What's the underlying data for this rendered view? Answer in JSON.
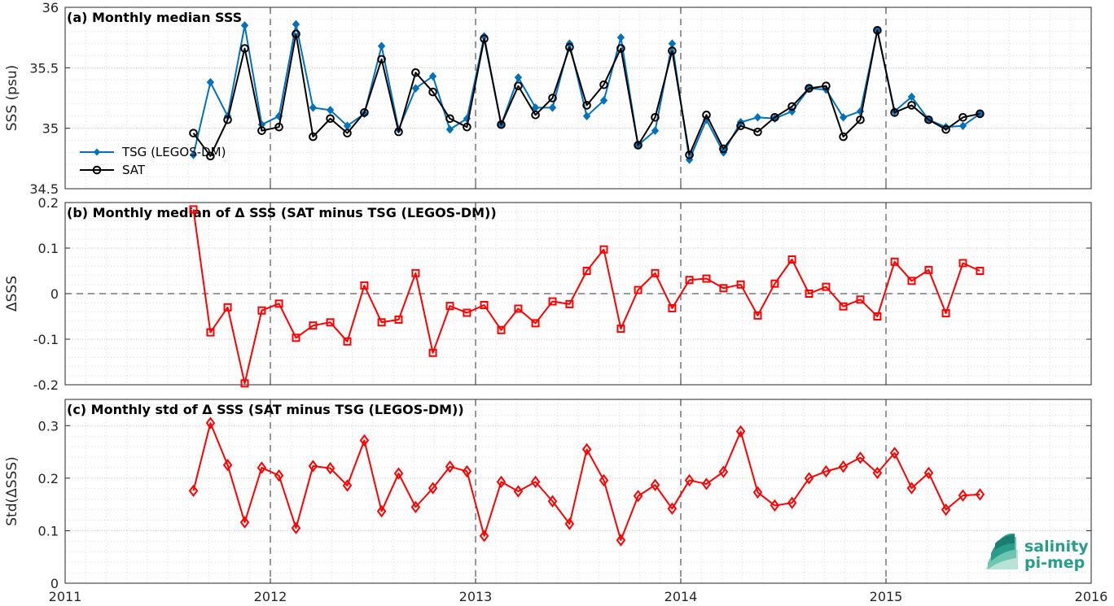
{
  "chart_data": [
    {
      "type": "line",
      "title": "(a) Monthly median SSS",
      "xlabel": "",
      "ylabel": "SSS (psu)",
      "xlim": [
        2011,
        2016
      ],
      "ylim": [
        34.5,
        36
      ],
      "yticks": [
        "34.5",
        "35",
        "35.5",
        "36"
      ],
      "grid": true,
      "legend_position": "left",
      "x": [
        2011.625,
        2011.708,
        2011.792,
        2011.875,
        2011.958,
        2012.042,
        2012.125,
        2012.208,
        2012.292,
        2012.375,
        2012.458,
        2012.542,
        2012.625,
        2012.708,
        2012.792,
        2012.875,
        2012.958,
        2013.042,
        2013.125,
        2013.208,
        2013.292,
        2013.375,
        2013.458,
        2013.542,
        2013.625,
        2013.708,
        2013.792,
        2013.875,
        2013.958,
        2014.042,
        2014.125,
        2014.208,
        2014.292,
        2014.375,
        2014.458,
        2014.542,
        2014.625,
        2014.708,
        2014.792,
        2014.875,
        2014.958,
        2015.042,
        2015.125,
        2015.208,
        2015.292,
        2015.375,
        2015.458
      ],
      "series": [
        {
          "name": "TSG (LEGOS-DM)",
          "color": "#0072BD",
          "marker": "diamond",
          "values": [
            34.78,
            35.38,
            35.1,
            35.85,
            35.03,
            35.1,
            35.86,
            35.17,
            35.15,
            35.02,
            35.12,
            35.68,
            34.99,
            35.33,
            35.43,
            34.99,
            35.08,
            35.76,
            35.03,
            35.42,
            35.17,
            35.17,
            35.7,
            35.1,
            35.23,
            35.75,
            34.86,
            34.98,
            35.7,
            34.74,
            35.07,
            34.8,
            35.05,
            35.09,
            35.08,
            35.14,
            35.33,
            35.32,
            35.09,
            35.14,
            35.81,
            35.14,
            35.26,
            35.07,
            35.01,
            35.02,
            35.12
          ]
        },
        {
          "name": "SAT",
          "color": "#000000",
          "marker": "circle",
          "values": [
            34.96,
            34.77,
            35.07,
            35.66,
            34.98,
            35.01,
            35.78,
            34.93,
            35.08,
            34.96,
            35.13,
            35.57,
            34.97,
            35.46,
            35.3,
            35.08,
            35.01,
            35.74,
            35.03,
            35.35,
            35.11,
            35.25,
            35.67,
            35.19,
            35.36,
            35.66,
            34.86,
            35.09,
            35.64,
            34.78,
            35.11,
            34.83,
            35.02,
            34.97,
            35.09,
            35.18,
            35.33,
            35.35,
            34.93,
            35.07,
            35.81,
            35.13,
            35.19,
            35.07,
            34.99,
            35.09,
            35.12
          ]
        }
      ]
    },
    {
      "type": "line",
      "title": "(b) Monthly median of Δ SSS (SAT minus TSG (LEGOS-DM))",
      "xlabel": "",
      "ylabel": "ΔSSS",
      "xlim": [
        2011,
        2016
      ],
      "ylim": [
        -0.2,
        0.2
      ],
      "yticks": [
        "-0.2",
        "-0.1",
        "0",
        "0.1",
        "0.2"
      ],
      "grid": true,
      "x": [
        2011.625,
        2011.708,
        2011.792,
        2011.875,
        2011.958,
        2012.042,
        2012.125,
        2012.208,
        2012.292,
        2012.375,
        2012.458,
        2012.542,
        2012.625,
        2012.708,
        2012.792,
        2012.875,
        2012.958,
        2013.042,
        2013.125,
        2013.208,
        2013.292,
        2013.375,
        2013.458,
        2013.542,
        2013.625,
        2013.708,
        2013.792,
        2013.875,
        2013.958,
        2014.042,
        2014.125,
        2014.208,
        2014.292,
        2014.375,
        2014.458,
        2014.542,
        2014.625,
        2014.708,
        2014.792,
        2014.875,
        2014.958,
        2015.042,
        2015.125,
        2015.208,
        2015.292,
        2015.375,
        2015.458
      ],
      "series": [
        {
          "color": "#FF0000",
          "marker": "square",
          "values": [
            0.185,
            -0.085,
            -0.03,
            -0.197,
            -0.037,
            -0.022,
            -0.097,
            -0.07,
            -0.063,
            -0.105,
            0.018,
            -0.063,
            -0.057,
            0.045,
            -0.13,
            -0.027,
            -0.042,
            -0.025,
            -0.08,
            -0.033,
            -0.065,
            -0.017,
            -0.023,
            0.05,
            0.097,
            -0.077,
            0.008,
            0.045,
            -0.032,
            0.03,
            0.033,
            0.012,
            0.02,
            -0.048,
            0.022,
            0.075,
            0.0,
            0.015,
            -0.028,
            -0.013,
            -0.05,
            0.07,
            0.028,
            0.052,
            -0.043,
            0.067,
            0.05
          ]
        }
      ]
    },
    {
      "type": "line",
      "title": "(c) Monthly std of Δ SSS (SAT minus TSG (LEGOS-DM))",
      "xlabel": "",
      "ylabel": "Std(ΔSSS)",
      "xlim": [
        2011,
        2016
      ],
      "ylim": [
        0,
        0.35
      ],
      "yticks": [
        "0",
        "0.1",
        "0.2",
        "0.3"
      ],
      "xticks": [
        "2011",
        "2012",
        "2013",
        "2014",
        "2015",
        "2016"
      ],
      "grid": true,
      "x": [
        2011.625,
        2011.708,
        2011.792,
        2011.875,
        2011.958,
        2012.042,
        2012.125,
        2012.208,
        2012.292,
        2012.375,
        2012.458,
        2012.542,
        2012.625,
        2012.708,
        2012.792,
        2012.875,
        2012.958,
        2013.042,
        2013.125,
        2013.208,
        2013.292,
        2013.375,
        2013.458,
        2013.542,
        2013.625,
        2013.708,
        2013.792,
        2013.875,
        2013.958,
        2014.042,
        2014.125,
        2014.208,
        2014.292,
        2014.375,
        2014.458,
        2014.542,
        2014.625,
        2014.708,
        2014.792,
        2014.875,
        2014.958,
        2015.042,
        2015.125,
        2015.208,
        2015.292,
        2015.375,
        2015.458
      ],
      "series": [
        {
          "color": "#FF0000",
          "marker": "diamond-open",
          "values": [
            0.176,
            0.305,
            0.225,
            0.116,
            0.22,
            0.205,
            0.105,
            0.223,
            0.219,
            0.186,
            0.272,
            0.137,
            0.209,
            0.145,
            0.181,
            0.222,
            0.213,
            0.09,
            0.193,
            0.175,
            0.193,
            0.156,
            0.113,
            0.255,
            0.196,
            0.082,
            0.166,
            0.187,
            0.142,
            0.196,
            0.189,
            0.212,
            0.289,
            0.173,
            0.148,
            0.153,
            0.2,
            0.213,
            0.222,
            0.239,
            0.21,
            0.248,
            0.181,
            0.21,
            0.14,
            0.167,
            0.169
          ]
        }
      ]
    }
  ],
  "logo": {
    "line1": "salinity",
    "line2": "pi-mep",
    "color": "#2a9d8a"
  }
}
